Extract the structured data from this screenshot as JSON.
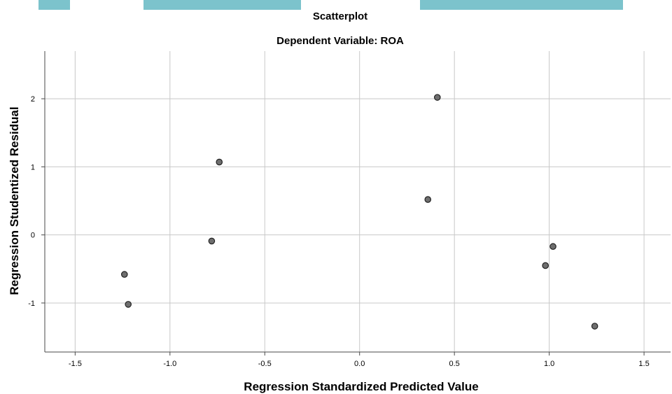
{
  "colors": {
    "banner": "#7cc3cc",
    "grid": "#c8c8c8",
    "point_fill": "#6e6e6e",
    "point_stroke": "#222222"
  },
  "chart_data": {
    "type": "scatter",
    "title": "Scatterplot",
    "subtitle": "Dependent Variable: ROA",
    "xlabel": "Regression Standardized Predicted Value",
    "ylabel": "Regression Studentized Residual",
    "xlim": [
      -1.66,
      1.64
    ],
    "ylim": [
      -1.72,
      2.7
    ],
    "xticks": [
      -1.5,
      -1.0,
      -0.5,
      0.0,
      0.5,
      1.0,
      1.5
    ],
    "xtick_labels": [
      "-1.5",
      "-1.0",
      "-0.5",
      "0.0",
      "0.5",
      "1.0",
      "1.5"
    ],
    "yticks": [
      2,
      1,
      0,
      -1
    ],
    "ytick_labels": [
      "2",
      "1",
      "0",
      "-1"
    ],
    "grid": true,
    "points": [
      {
        "x": 0.41,
        "y": 2.02
      },
      {
        "x": -0.74,
        "y": 1.07
      },
      {
        "x": 0.36,
        "y": 0.52
      },
      {
        "x": -0.78,
        "y": -0.09
      },
      {
        "x": 1.02,
        "y": -0.17
      },
      {
        "x": 0.98,
        "y": -0.45
      },
      {
        "x": -1.24,
        "y": -0.58
      },
      {
        "x": -1.22,
        "y": -1.02
      },
      {
        "x": 1.24,
        "y": -1.34
      }
    ]
  }
}
